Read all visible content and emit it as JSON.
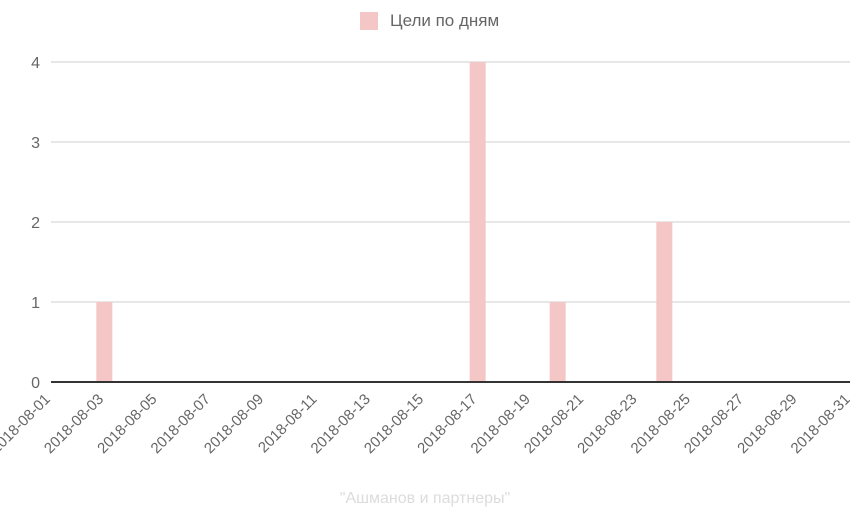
{
  "legend": {
    "label": "Цели по дням"
  },
  "caption": "\"Ашманов и партнеры\"",
  "colors": {
    "bar": "#f5c6c6",
    "grid": "#cfcfcf",
    "axis": "#333333",
    "caption": "#dcdcdc"
  },
  "chart_data": {
    "type": "bar",
    "x_ticks": [
      "2018-08-01",
      "2018-08-03",
      "2018-08-05",
      "2018-08-07",
      "2018-08-09",
      "2018-08-11",
      "2018-08-13",
      "2018-08-15",
      "2018-08-17",
      "2018-08-19",
      "2018-08-21",
      "2018-08-23",
      "2018-08-25",
      "2018-08-27",
      "2018-08-29",
      "2018-08-31"
    ],
    "y_ticks": [
      0,
      1,
      2,
      3,
      4
    ],
    "ylim": [
      0,
      4
    ],
    "legend": "top",
    "grid": true,
    "series": [
      {
        "name": "Цели по дням",
        "points": [
          {
            "x": "2018-08-03",
            "y": 1
          },
          {
            "x": "2018-08-17",
            "y": 4
          },
          {
            "x": "2018-08-20",
            "y": 1
          },
          {
            "x": "2018-08-24",
            "y": 2
          }
        ]
      }
    ]
  }
}
